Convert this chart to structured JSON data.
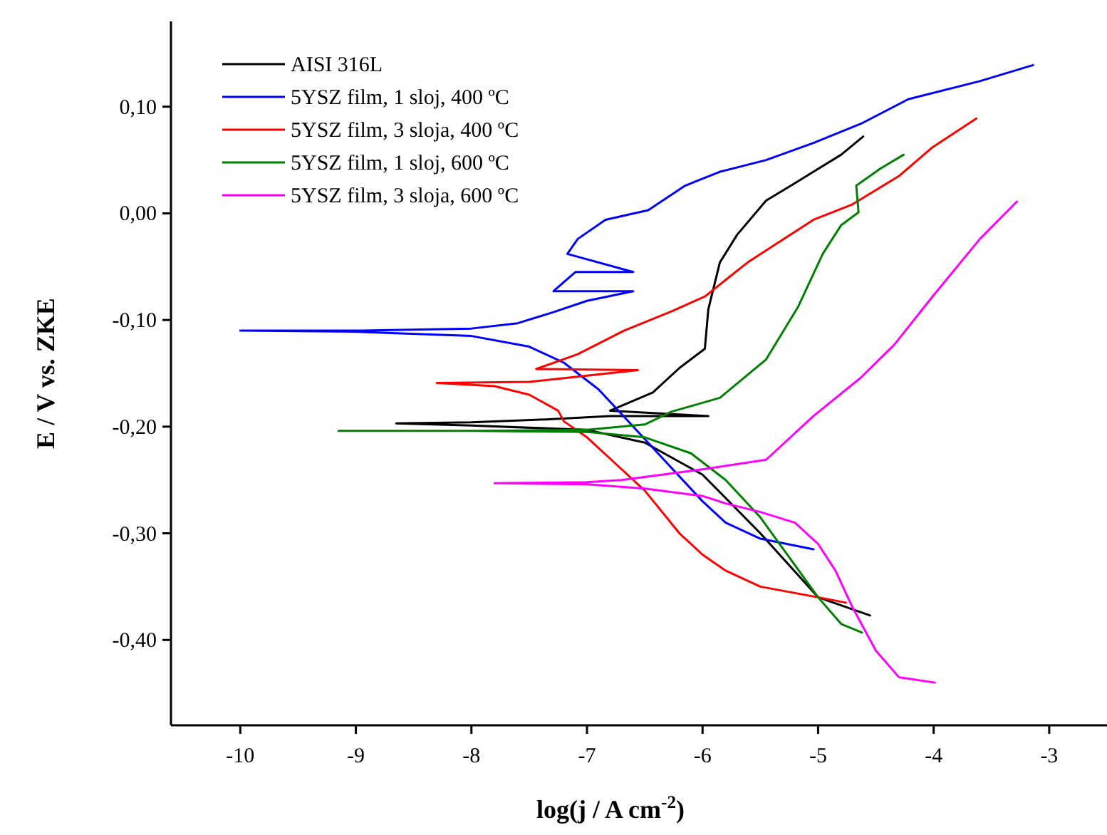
{
  "chart_data": {
    "type": "line",
    "xlabel": "log(j / A cm$^{-2}$)",
    "ylabel": "E / V vs. ZKE",
    "xlim": [
      -10.6,
      -2.5
    ],
    "ylim": [
      -0.48,
      0.18
    ],
    "xticks": [
      -10,
      -9,
      -8,
      -7,
      -6,
      -5,
      -4,
      -3
    ],
    "yticks": [
      {
        "value": 0.1,
        "label": "0,10"
      },
      {
        "value": 0,
        "label": "0,00"
      },
      {
        "value": -0.1,
        "label": "-0,10"
      },
      {
        "value": -0.2,
        "label": "-0,20"
      },
      {
        "value": -0.3,
        "label": "-0,30"
      },
      {
        "value": -0.4,
        "label": "-0,40"
      }
    ],
    "legend": "top left",
    "grid": false,
    "line_style": "solid",
    "series": [
      {
        "name": "AISI 316L",
        "color": "#000000",
        "x": [
          -4.55,
          -5.0,
          -5.5,
          -6.0,
          -6.5,
          -7.0,
          -8.0,
          -8.65,
          -8.0,
          -7.3,
          -6.8,
          -5.95,
          -6.8,
          -6.43,
          -6.2,
          -5.98,
          -5.95,
          -5.85,
          -5.7,
          -5.45,
          -5.25,
          -5.04,
          -4.8,
          -4.61
        ],
        "values": [
          -0.377,
          -0.36,
          -0.3,
          -0.245,
          -0.215,
          -0.203,
          -0.199,
          -0.197,
          -0.196,
          -0.193,
          -0.19,
          -0.19,
          -0.185,
          -0.168,
          -0.145,
          -0.127,
          -0.09,
          -0.046,
          -0.02,
          0.012,
          0.025,
          0.039,
          0.055,
          0.072
        ]
      },
      {
        "name": "5YSZ film, 1 sloj, 400 ºC",
        "color": "#0000ff",
        "x": [
          -5.04,
          -5.5,
          -5.8,
          -6.0,
          -6.3,
          -6.6,
          -6.9,
          -7.2,
          -7.5,
          -8.0,
          -9.0,
          -10.0,
          -9.0,
          -8.0,
          -7.6,
          -7.3,
          -7.0,
          -6.6,
          -7.0,
          -7.29,
          -7.1,
          -6.6,
          -7.17,
          -7.08,
          -6.84,
          -6.47,
          -6.15,
          -5.85,
          -5.45,
          -5.04,
          -4.63,
          -4.22,
          -3.6,
          -3.14
        ],
        "values": [
          -0.315,
          -0.305,
          -0.29,
          -0.27,
          -0.235,
          -0.2,
          -0.165,
          -0.14,
          -0.125,
          -0.115,
          -0.111,
          -0.11,
          -0.11,
          -0.108,
          -0.103,
          -0.093,
          -0.082,
          -0.073,
          -0.073,
          -0.073,
          -0.055,
          -0.055,
          -0.038,
          -0.024,
          -0.006,
          0.003,
          0.026,
          0.039,
          0.05,
          0.066,
          0.084,
          0.107,
          0.124,
          0.139
        ]
      },
      {
        "name": "5YSZ film, 3 sloja, 400 ºC",
        "color": "#ff0000",
        "x": [
          -4.76,
          -5.0,
          -5.5,
          -5.8,
          -6.0,
          -6.2,
          -6.5,
          -6.8,
          -7.0,
          -7.2,
          -7.25,
          -7.5,
          -7.8,
          -8.3,
          -7.5,
          -6.56,
          -7.44,
          -7.08,
          -6.68,
          -6.27,
          -5.98,
          -5.61,
          -5.04,
          -4.71,
          -4.3,
          -4.01,
          -3.63
        ],
        "values": [
          -0.365,
          -0.36,
          -0.35,
          -0.335,
          -0.32,
          -0.3,
          -0.26,
          -0.23,
          -0.21,
          -0.195,
          -0.185,
          -0.17,
          -0.162,
          -0.159,
          -0.158,
          -0.147,
          -0.146,
          -0.132,
          -0.11,
          -0.092,
          -0.078,
          -0.046,
          -0.006,
          0.008,
          0.035,
          0.062,
          0.089
        ]
      },
      {
        "name": "5YSZ film, 1 sloj, 600 ºC",
        "color": "#008000",
        "x": [
          -4.62,
          -4.8,
          -5.0,
          -5.2,
          -5.5,
          -5.8,
          -6.1,
          -6.5,
          -7.0,
          -8.0,
          -9.15,
          -8.0,
          -7.0,
          -6.5,
          -6.27,
          -5.85,
          -5.45,
          -5.17,
          -4.96,
          -4.8,
          -4.65,
          -4.67,
          -4.46,
          -4.26
        ],
        "values": [
          -0.393,
          -0.385,
          -0.36,
          -0.33,
          -0.285,
          -0.25,
          -0.225,
          -0.21,
          -0.205,
          -0.204,
          -0.204,
          -0.204,
          -0.203,
          -0.198,
          -0.186,
          -0.173,
          -0.137,
          -0.087,
          -0.038,
          -0.011,
          0.001,
          0.026,
          0.042,
          0.055
        ]
      },
      {
        "name": "5YSZ film, 3 sloja, 600 ºC",
        "color": "#ff00ff",
        "x": [
          -3.99,
          -4.3,
          -4.5,
          -4.7,
          -4.85,
          -5.0,
          -5.2,
          -5.5,
          -5.8,
          -6.0,
          -6.5,
          -7.0,
          -7.8,
          -7.0,
          -6.7,
          -6.0,
          -5.45,
          -5.04,
          -4.63,
          -4.34,
          -4.01,
          -3.6,
          -3.28
        ],
        "values": [
          -0.44,
          -0.435,
          -0.41,
          -0.37,
          -0.335,
          -0.31,
          -0.29,
          -0.28,
          -0.272,
          -0.265,
          -0.258,
          -0.254,
          -0.253,
          -0.252,
          -0.25,
          -0.24,
          -0.231,
          -0.19,
          -0.154,
          -0.123,
          -0.078,
          -0.024,
          0.011
        ]
      }
    ]
  }
}
